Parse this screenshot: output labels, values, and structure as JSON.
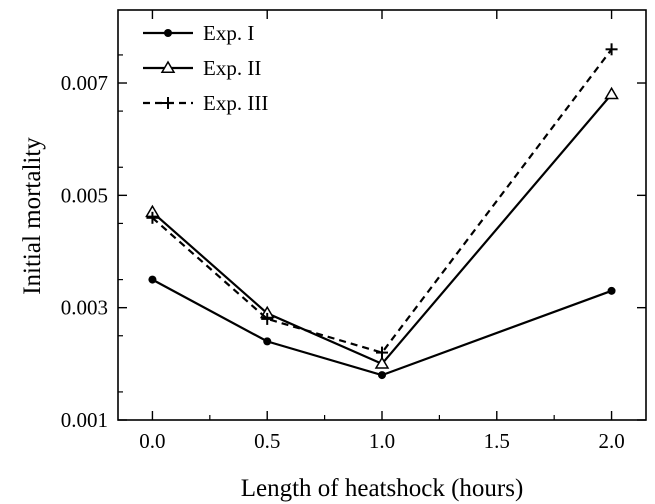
{
  "chart_data": {
    "type": "line",
    "title": "",
    "xlabel": "Length of heatshock (hours)",
    "ylabel": "Initial mortality",
    "xlim": [
      -0.15,
      2.15
    ],
    "ylim": [
      0.001,
      0.0083
    ],
    "x_ticks": [
      0.0,
      0.5,
      1.0,
      1.5,
      2.0
    ],
    "x_tick_labels": [
      "0.0",
      "0.5",
      "1.0",
      "1.5",
      "2.0"
    ],
    "y_ticks": [
      0.001,
      0.003,
      0.005,
      0.007
    ],
    "y_tick_labels": [
      "0.001",
      "0.003",
      "0.005",
      "0.007"
    ],
    "grid": false,
    "legend_position": "top-left",
    "x": [
      0.0,
      0.5,
      1.0,
      2.0
    ],
    "series": [
      {
        "name": "Exp. I",
        "marker": "circle",
        "line_style": "solid",
        "color": "#000000",
        "values": [
          0.0035,
          0.0024,
          0.0018,
          0.0033
        ]
      },
      {
        "name": "Exp. II",
        "marker": "triangle",
        "line_style": "solid",
        "color": "#000000",
        "values": [
          0.0047,
          0.0029,
          0.002,
          0.0068
        ]
      },
      {
        "name": "Exp. III",
        "marker": "plus",
        "line_style": "dashed",
        "color": "#000000",
        "values": [
          0.0046,
          0.0028,
          0.0022,
          0.0076
        ]
      }
    ]
  }
}
